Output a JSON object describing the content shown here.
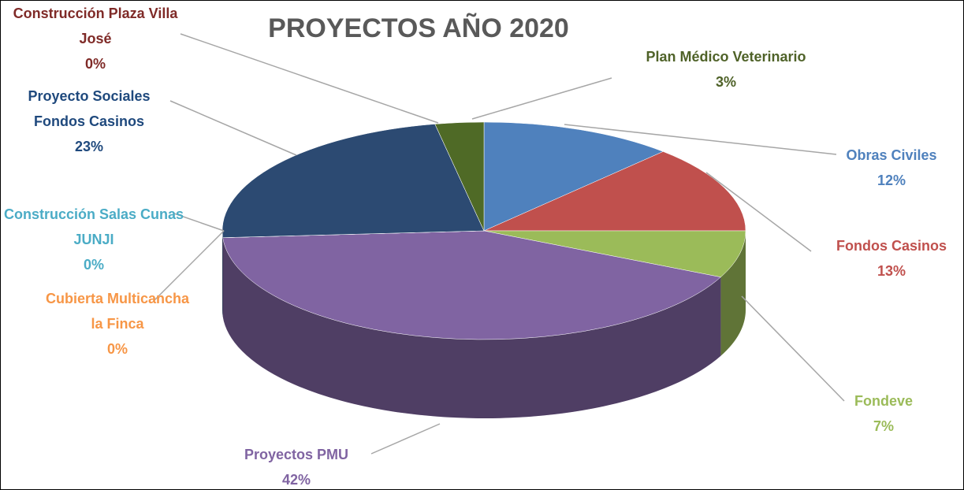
{
  "chart_data": {
    "type": "pie",
    "title": "PROYECTOS AÑO 2020",
    "categories": [
      "Obras Civiles",
      "Fondos Casinos",
      "Fondeve",
      "Proyectos PMU",
      "Cubierta Multicancha la Finca",
      "Construcción Salas Cunas JUNJI",
      "Proyecto Sociales Fondos Casinos",
      "Construcción Plaza Villa José",
      "Plan Médico Veterinario"
    ],
    "values": [
      12,
      13,
      7,
      42,
      0,
      0,
      23,
      0,
      3
    ],
    "value_labels": [
      "12%",
      "13%",
      "7%",
      "42%",
      "0%",
      "0%",
      "23%",
      "0%",
      "3%"
    ],
    "colors": [
      "#4f81bd",
      "#c0504d",
      "#9bbb59",
      "#8064a2",
      "#f79646",
      "#4bacc6",
      "#2c4a72",
      "#8b2c2a",
      "#4f6a26"
    ],
    "label_colors": [
      "#4f81bd",
      "#c0504d",
      "#9bbb59",
      "#8064a2",
      "#f79646",
      "#4bacc6",
      "#1f497d",
      "#7f2a27",
      "#4f6228"
    ]
  }
}
